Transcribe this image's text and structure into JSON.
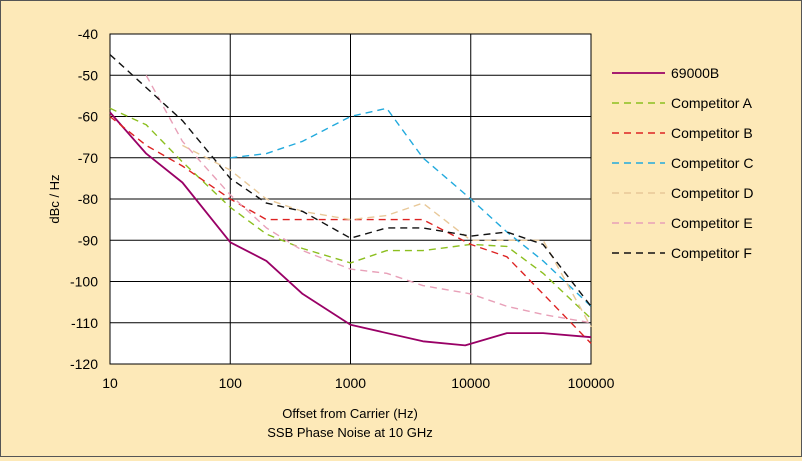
{
  "chart_data": {
    "type": "line",
    "title": "",
    "xlabel": "Offset from Carrier (Hz)",
    "caption": "SSB Phase Noise at 10 GHz",
    "ylabel": "dBc / Hz",
    "x_scale": "log",
    "xlim": [
      10,
      100000
    ],
    "ylim": [
      -120,
      -40
    ],
    "x_ticks": [
      "10",
      "100",
      "1000",
      "10000",
      "100000"
    ],
    "y_ticks": [
      "-40",
      "-50",
      "-60",
      "-70",
      "-80",
      "-90",
      "-100",
      "-110",
      "-120"
    ],
    "grid": true,
    "legend_position": "right",
    "series": [
      {
        "name": "69000B",
        "color": "#990066",
        "dash": "solid",
        "x": [
          10,
          20,
          40,
          100,
          200,
          400,
          1000,
          4000,
          9000,
          20000,
          40000,
          100000
        ],
        "y": [
          -59,
          -69,
          -76,
          -90.5,
          -95,
          -103,
          -110.5,
          -114.5,
          -115.5,
          -112.5,
          -112.5,
          -113.5
        ]
      },
      {
        "name": "Competitor A",
        "color": "#8cbf1f",
        "dash": "dashed",
        "x": [
          10,
          20,
          40,
          100,
          200,
          400,
          1000,
          2000,
          4000,
          10000,
          20000,
          40000,
          100000
        ],
        "y": [
          -58,
          -62,
          -71,
          -82,
          -88.5,
          -92,
          -95.5,
          -92.5,
          -92.5,
          -91,
          -91.5,
          -98,
          -109
        ]
      },
      {
        "name": "Competitor B",
        "color": "#dd2222",
        "dash": "dashed",
        "x": [
          10,
          20,
          40,
          100,
          200,
          400,
          1000,
          2000,
          4000,
          10000,
          20000,
          40000,
          100000
        ],
        "y": [
          -60,
          -67,
          -72,
          -80,
          -85,
          -85,
          -85,
          -85,
          -85,
          -91,
          -94,
          -103,
          -115
        ]
      },
      {
        "name": "Competitor C",
        "color": "#22aadd",
        "dash": "dashed",
        "x": [
          100,
          200,
          400,
          1000,
          2000,
          4000,
          10000,
          20000,
          40000,
          100000
        ],
        "y": [
          -70,
          -69,
          -66,
          -60,
          -58,
          -70,
          -80,
          -88,
          -95,
          -106
        ]
      },
      {
        "name": "Competitor D",
        "color": "#e8c898",
        "dash": "dashed",
        "x": [
          40,
          100,
          200,
          400,
          1000,
          2000,
          4000,
          10000,
          20000,
          40000,
          100000
        ],
        "y": [
          -67,
          -73,
          -80,
          -83,
          -85,
          -84,
          -81,
          -90,
          -90,
          -90,
          -111
        ]
      },
      {
        "name": "Competitor E",
        "color": "#e8a0b8",
        "dash": "dashed",
        "x": [
          20,
          40,
          100,
          200,
          400,
          1000,
          2000,
          4000,
          10000,
          20000,
          40000,
          100000
        ],
        "y": [
          -50,
          -66,
          -79,
          -87,
          -92.5,
          -97,
          -98,
          -101,
          -103,
          -106,
          -108,
          -110
        ]
      },
      {
        "name": "Competitor F",
        "color": "#111111",
        "dash": "dashed",
        "x": [
          10,
          20,
          40,
          100,
          200,
          400,
          1000,
          2000,
          4000,
          10000,
          20000,
          40000,
          100000
        ],
        "y": [
          -45,
          -53,
          -61,
          -75,
          -81,
          -83,
          -89.5,
          -87,
          -87,
          -89,
          -88,
          -91,
          -106
        ]
      }
    ]
  }
}
